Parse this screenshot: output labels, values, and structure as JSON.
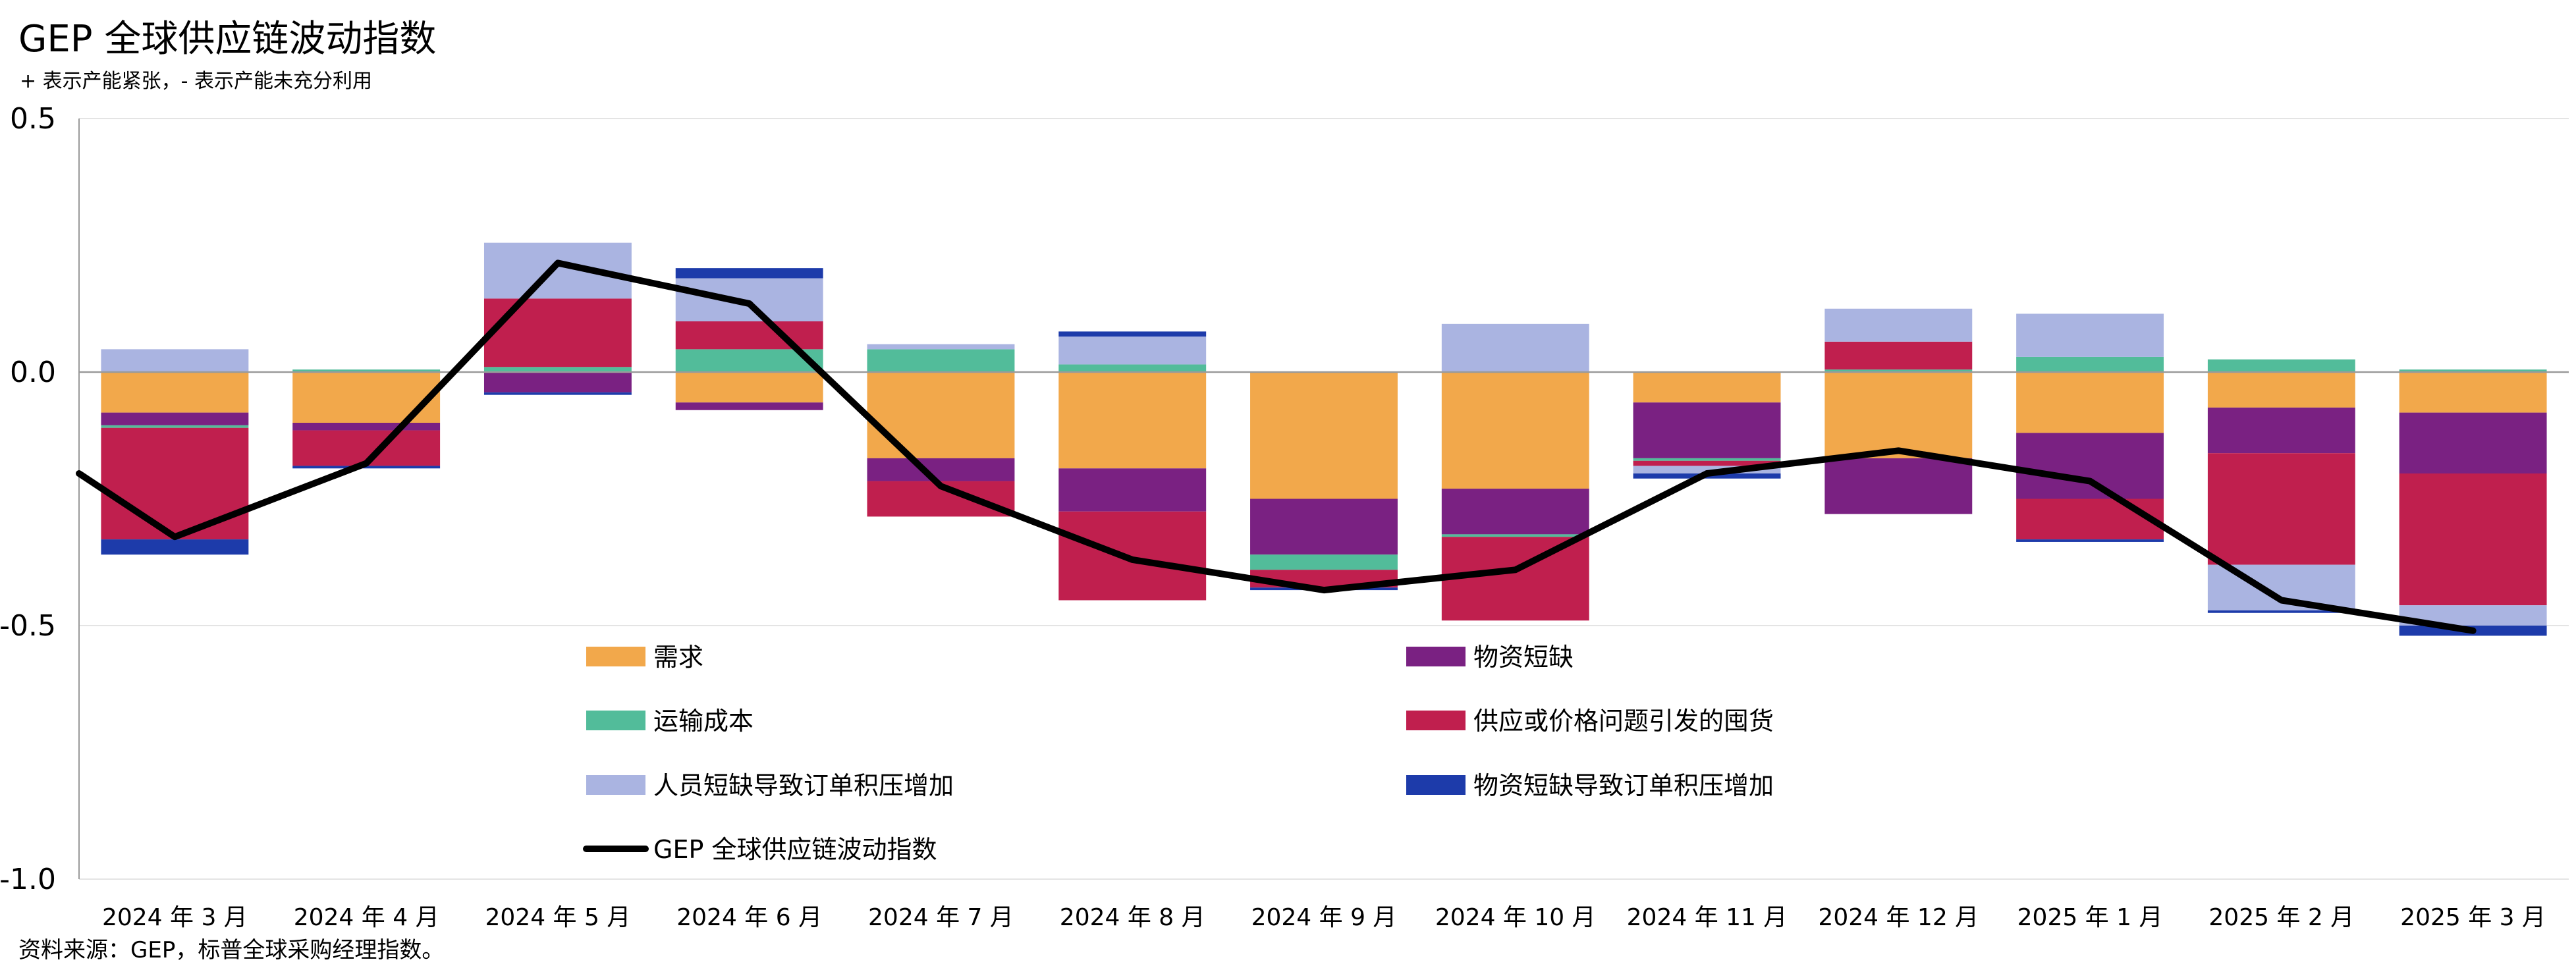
{
  "title": "GEP 全球供应链波动指数",
  "subtitle": "+ 表示产能紧张，- 表示产能未充分利用",
  "source": "资料来源：GEP，标普全球采购经理指数。",
  "chart_data": {
    "type": "bar",
    "stacked": true,
    "title": "GEP 全球供应链波动指数",
    "subtitle": "+ 表示产能紧张，- 表示产能未充分利用",
    "categories": [
      "2024 年 3 月",
      "2024 年 4 月",
      "2024 年 5 月",
      "2024 年 6 月",
      "2024 年 7 月",
      "2024 年 8 月",
      "2024 年 9 月",
      "2024 年 10 月",
      "2024 年 11 月",
      "2024 年 12 月",
      "2025 年 1 月",
      "2025 年 2 月",
      "2025 年 3 月"
    ],
    "ylim": [
      -1.0,
      0.5
    ],
    "yticks": [
      0.5,
      0.0,
      -0.5,
      -1.0
    ],
    "ytick_labels": [
      "0.5",
      "0.0",
      "-0.5",
      "-1.0"
    ],
    "grid": true,
    "legend_position": "bottom-inside",
    "series": [
      {
        "name": "需求",
        "type": "bar",
        "color": "#F2A84B",
        "values": [
          -0.08,
          -0.1,
          0.0,
          -0.06,
          -0.17,
          -0.19,
          -0.25,
          -0.23,
          -0.06,
          -0.17,
          -0.12,
          -0.07,
          -0.08
        ]
      },
      {
        "name": "物资短缺",
        "type": "bar",
        "color": "#7A2182",
        "values": [
          -0.025,
          -0.015,
          -0.04,
          -0.015,
          -0.045,
          -0.085,
          -0.11,
          -0.09,
          -0.11,
          -0.11,
          -0.13,
          -0.09,
          -0.12
        ]
      },
      {
        "name": "运输成本",
        "type": "bar",
        "color": "#52BC9A",
        "values": [
          -0.005,
          0.005,
          0.01,
          0.045,
          0.045,
          0.015,
          -0.03,
          -0.005,
          -0.005,
          0.005,
          0.03,
          0.025,
          0.005
        ]
      },
      {
        "name": "供应或价格问题引发的囤货",
        "type": "bar",
        "color": "#C01F4E",
        "values": [
          -0.22,
          -0.07,
          0.135,
          0.055,
          -0.07,
          -0.175,
          -0.035,
          -0.165,
          -0.01,
          0.055,
          -0.08,
          -0.22,
          -0.26
        ]
      },
      {
        "name": "人员短缺导致订单积压增加",
        "type": "bar",
        "color": "#AAB4E1",
        "values": [
          0.045,
          0.0,
          0.11,
          0.085,
          0.01,
          0.055,
          0.0,
          0.095,
          -0.015,
          0.065,
          0.085,
          -0.09,
          -0.04
        ]
      },
      {
        "name": "物资短缺导致订单积压增加",
        "type": "bar",
        "color": "#1D3BAA",
        "values": [
          -0.03,
          -0.005,
          -0.005,
          0.02,
          0.0,
          0.01,
          -0.005,
          0.0,
          -0.01,
          0.0,
          -0.005,
          -0.005,
          -0.02
        ]
      },
      {
        "name": "GEP 全球供应链波动指数",
        "type": "line",
        "color": "#000000",
        "x_start_value": -0.2,
        "values": [
          -0.325,
          -0.18,
          0.215,
          0.135,
          -0.225,
          -0.37,
          -0.43,
          -0.39,
          -0.2,
          -0.155,
          -0.215,
          -0.45,
          -0.51
        ]
      }
    ],
    "legend": [
      {
        "name": "需求",
        "color": "#F2A84B",
        "kind": "bar"
      },
      {
        "name": "物资短缺",
        "color": "#7A2182",
        "kind": "bar"
      },
      {
        "name": "运输成本",
        "color": "#52BC9A",
        "kind": "bar"
      },
      {
        "name": "供应或价格问题引发的囤货",
        "color": "#C01F4E",
        "kind": "bar"
      },
      {
        "name": "人员短缺导致订单积压增加",
        "color": "#AAB4E1",
        "kind": "bar"
      },
      {
        "name": "物资短缺导致订单积压增加",
        "color": "#1D3BAA",
        "kind": "bar"
      },
      {
        "name": "GEP 全球供应链波动指数",
        "color": "#000000",
        "kind": "line"
      }
    ]
  }
}
